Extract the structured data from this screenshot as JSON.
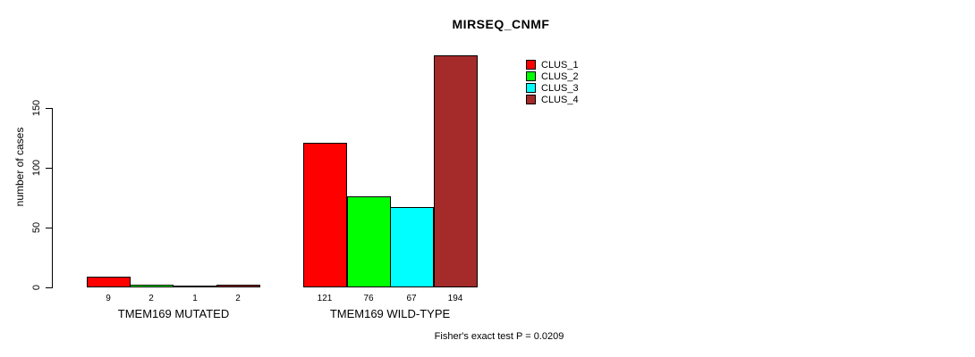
{
  "title": "MIRSEQ_CNMF",
  "ylabel": "number of cases",
  "footer": "Fisher's exact test P = 0.0209",
  "colors": {
    "clus_1": "#ff0000",
    "clus_2": "#00ff00",
    "clus_3": "#00ffff",
    "clus_4": "#a52a2a",
    "axis": "#000000",
    "background": "#ffffff"
  },
  "legend": {
    "items": [
      {
        "label": "CLUS_1",
        "color": "#ff0000"
      },
      {
        "label": "CLUS_2",
        "color": "#00ff00"
      },
      {
        "label": "CLUS_3",
        "color": "#00ffff"
      },
      {
        "label": "CLUS_4",
        "color": "#a52a2a"
      }
    ]
  },
  "chart_data": {
    "type": "bar",
    "title": "MIRSEQ_CNMF",
    "xlabel": "",
    "ylabel": "number of cases",
    "categories": [
      "TMEM169 MUTATED",
      "TMEM169 WILD-TYPE"
    ],
    "series": [
      {
        "name": "CLUS_1",
        "color": "#ff0000",
        "values": [
          9,
          121
        ]
      },
      {
        "name": "CLUS_2",
        "color": "#00ff00",
        "values": [
          2,
          76
        ]
      },
      {
        "name": "CLUS_3",
        "color": "#00ffff",
        "values": [
          1,
          67
        ]
      },
      {
        "name": "CLUS_4",
        "color": "#a52a2a",
        "values": [
          2,
          194
        ]
      }
    ],
    "bar_value_labels": [
      [
        "9",
        "2",
        "1",
        "2"
      ],
      [
        "121",
        "76",
        "67",
        "194"
      ]
    ],
    "yticks": [
      0,
      50,
      100,
      150
    ],
    "ylim": [
      0,
      150
    ],
    "grid": false,
    "legend_position": "top-right",
    "annotation": "Fisher's exact test P = 0.0209"
  }
}
